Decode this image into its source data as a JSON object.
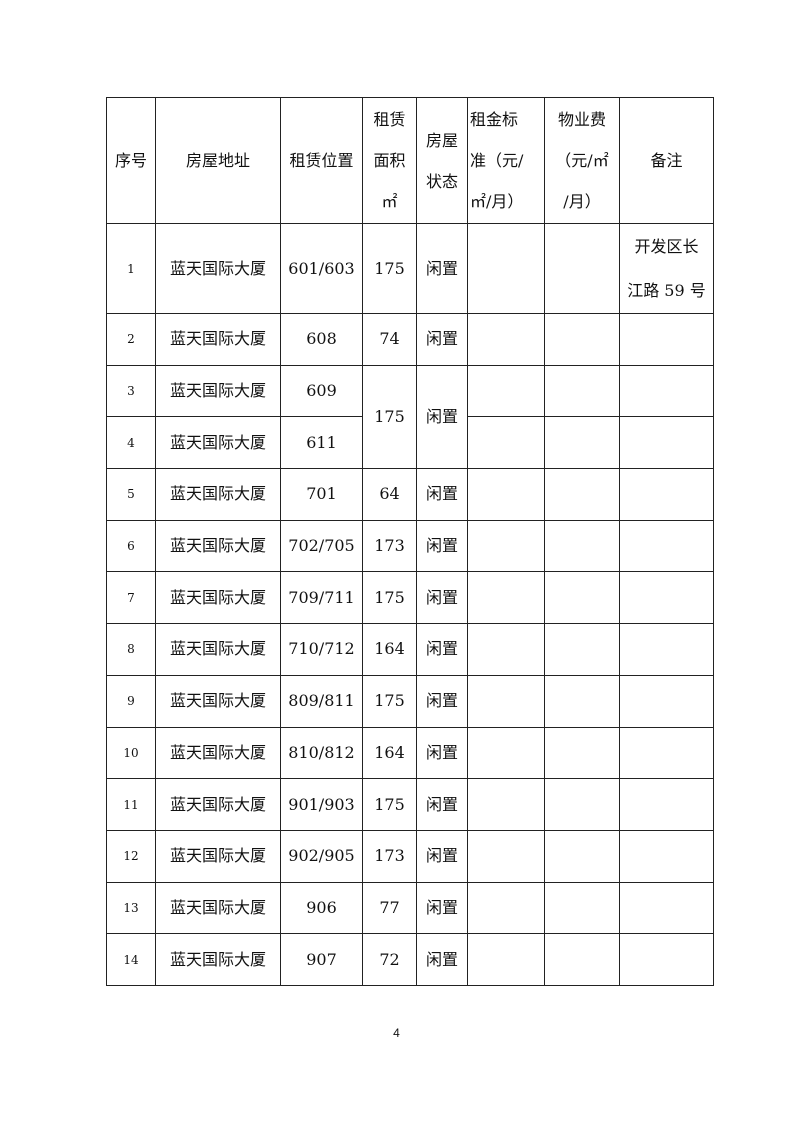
{
  "table": {
    "headers": [
      "序号",
      "房屋地址",
      "租赁位置",
      "租赁\n面积\n㎡",
      "房屋\n状态",
      "租金标\n准（元/\n㎡/月）",
      "物业费\n（元/㎡\n/月）",
      "备注"
    ],
    "rows": [
      {
        "no": "1",
        "address": "蓝天国际大厦",
        "unit": "601/603",
        "area": "175",
        "status": "闲置",
        "rent": "",
        "fee": "",
        "note": "开发区长\n江路 59 号"
      },
      {
        "no": "2",
        "address": "蓝天国际大厦",
        "unit": "608",
        "area": "74",
        "status": "闲置",
        "rent": "",
        "fee": "",
        "note": ""
      },
      {
        "no": "3",
        "address": "蓝天国际大厦",
        "unit": "609",
        "area": "175",
        "status": "闲置",
        "rent": "",
        "fee": "",
        "note": ""
      },
      {
        "no": "4",
        "address": "蓝天国际大厦",
        "unit": "611",
        "area": null,
        "status": null,
        "rent": "",
        "fee": "",
        "note": ""
      },
      {
        "no": "5",
        "address": "蓝天国际大厦",
        "unit": "701",
        "area": "64",
        "status": "闲置",
        "rent": "",
        "fee": "",
        "note": ""
      },
      {
        "no": "6",
        "address": "蓝天国际大厦",
        "unit": "702/705",
        "area": "173",
        "status": "闲置",
        "rent": "",
        "fee": "",
        "note": ""
      },
      {
        "no": "7",
        "address": "蓝天国际大厦",
        "unit": "709/711",
        "area": "175",
        "status": "闲置",
        "rent": "",
        "fee": "",
        "note": ""
      },
      {
        "no": "8",
        "address": "蓝天国际大厦",
        "unit": "710/712",
        "area": "164",
        "status": "闲置",
        "rent": "",
        "fee": "",
        "note": ""
      },
      {
        "no": "9",
        "address": "蓝天国际大厦",
        "unit": "809/811",
        "area": "175",
        "status": "闲置",
        "rent": "",
        "fee": "",
        "note": ""
      },
      {
        "no": "10",
        "address": "蓝天国际大厦",
        "unit": "810/812",
        "area": "164",
        "status": "闲置",
        "rent": "",
        "fee": "",
        "note": ""
      },
      {
        "no": "11",
        "address": "蓝天国际大厦",
        "unit": "901/903",
        "area": "175",
        "status": "闲置",
        "rent": "",
        "fee": "",
        "note": ""
      },
      {
        "no": "12",
        "address": "蓝天国际大厦",
        "unit": "902/905",
        "area": "173",
        "status": "闲置",
        "rent": "",
        "fee": "",
        "note": ""
      },
      {
        "no": "13",
        "address": "蓝天国际大厦",
        "unit": "906",
        "area": "77",
        "status": "闲置",
        "rent": "",
        "fee": "",
        "note": ""
      },
      {
        "no": "14",
        "address": "蓝天国际大厦",
        "unit": "907",
        "area": "72",
        "status": "闲置",
        "rent": "",
        "fee": "",
        "note": ""
      }
    ]
  },
  "page_number": "4"
}
